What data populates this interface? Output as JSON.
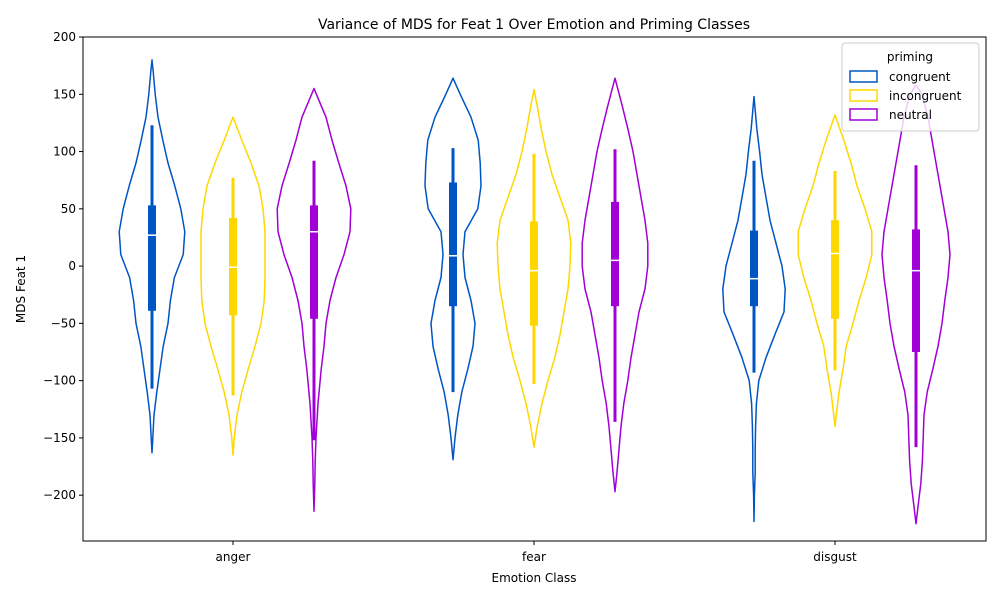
{
  "chart_data": {
    "type": "violin",
    "title": "Variance of MDS for Feat 1 Over Emotion and Priming Classes",
    "xlabel": "Emotion Class",
    "ylabel": "MDS Feat 1",
    "ylim": [
      -240,
      200
    ],
    "yticks": [
      200,
      150,
      100,
      50,
      0,
      -50,
      -100,
      -150,
      -200
    ],
    "ytick_labels": [
      "200",
      "150",
      "100",
      "50",
      "0",
      "−50",
      "−100",
      "−150",
      "−200"
    ],
    "categories": [
      "anger",
      "fear",
      "disgust"
    ],
    "legend": {
      "title": "priming",
      "position": "top-right",
      "entries": [
        "congruent",
        "incongruent",
        "neutral"
      ]
    },
    "series": [
      {
        "name": "congruent",
        "color": "#0055c4",
        "violins": [
          {
            "min": -163,
            "max": 180,
            "whisker_low": -107,
            "whisker_high": 123,
            "q1": -39,
            "median": 27,
            "q3": 53,
            "profile": [
              [
                -163,
                0.0
              ],
              [
                -150,
                0.02
              ],
              [
                -130,
                0.05
              ],
              [
                -110,
                0.12
              ],
              [
                -90,
                0.2
              ],
              [
                -70,
                0.28
              ],
              [
                -50,
                0.4
              ],
              [
                -30,
                0.46
              ],
              [
                -10,
                0.56
              ],
              [
                10,
                0.78
              ],
              [
                30,
                0.82
              ],
              [
                50,
                0.72
              ],
              [
                70,
                0.57
              ],
              [
                90,
                0.4
              ],
              [
                110,
                0.27
              ],
              [
                130,
                0.15
              ],
              [
                150,
                0.08
              ],
              [
                170,
                0.03
              ],
              [
                180,
                0.0
              ]
            ]
          },
          {
            "min": -169,
            "max": 164,
            "whisker_low": -110,
            "whisker_high": 103,
            "q1": -35,
            "median": 9,
            "q3": 73,
            "profile": [
              [
                -169,
                0.0
              ],
              [
                -150,
                0.05
              ],
              [
                -130,
                0.12
              ],
              [
                -110,
                0.22
              ],
              [
                -90,
                0.37
              ],
              [
                -70,
                0.5
              ],
              [
                -50,
                0.55
              ],
              [
                -30,
                0.45
              ],
              [
                -10,
                0.3
              ],
              [
                10,
                0.25
              ],
              [
                30,
                0.3
              ],
              [
                50,
                0.62
              ],
              [
                70,
                0.7
              ],
              [
                90,
                0.68
              ],
              [
                110,
                0.63
              ],
              [
                130,
                0.45
              ],
              [
                150,
                0.18
              ],
              [
                164,
                0.0
              ]
            ]
          },
          {
            "min": -223,
            "max": 148,
            "whisker_low": -93,
            "whisker_high": 92,
            "q1": -35,
            "median": -11,
            "q3": 31,
            "profile": [
              [
                -223,
                0.0
              ],
              [
                -200,
                0.01
              ],
              [
                -180,
                0.03
              ],
              [
                -160,
                0.03
              ],
              [
                -140,
                0.04
              ],
              [
                -120,
                0.06
              ],
              [
                -100,
                0.12
              ],
              [
                -80,
                0.3
              ],
              [
                -60,
                0.52
              ],
              [
                -40,
                0.75
              ],
              [
                -20,
                0.78
              ],
              [
                0,
                0.7
              ],
              [
                20,
                0.55
              ],
              [
                40,
                0.4
              ],
              [
                60,
                0.3
              ],
              [
                80,
                0.2
              ],
              [
                100,
                0.14
              ],
              [
                120,
                0.07
              ],
              [
                140,
                0.02
              ],
              [
                148,
                0.0
              ]
            ]
          }
        ]
      },
      {
        "name": "incongruent",
        "color": "#ffd700",
        "violins": [
          {
            "min": -165,
            "max": 130,
            "whisker_low": -113,
            "whisker_high": 77,
            "q1": -43,
            "median": -1,
            "q3": 42,
            "profile": [
              [
                -165,
                0.0
              ],
              [
                -150,
                0.03
              ],
              [
                -130,
                0.1
              ],
              [
                -110,
                0.22
              ],
              [
                -90,
                0.38
              ],
              [
                -70,
                0.55
              ],
              [
                -50,
                0.7
              ],
              [
                -30,
                0.78
              ],
              [
                -10,
                0.8
              ],
              [
                10,
                0.8
              ],
              [
                30,
                0.8
              ],
              [
                50,
                0.75
              ],
              [
                70,
                0.65
              ],
              [
                90,
                0.45
              ],
              [
                110,
                0.22
              ],
              [
                130,
                0.0
              ]
            ]
          },
          {
            "min": -158,
            "max": 154,
            "whisker_low": -103,
            "whisker_high": 98,
            "q1": -52,
            "median": -4,
            "q3": 39,
            "profile": [
              [
                -158,
                0.0
              ],
              [
                -140,
                0.08
              ],
              [
                -120,
                0.2
              ],
              [
                -100,
                0.35
              ],
              [
                -80,
                0.52
              ],
              [
                -60,
                0.65
              ],
              [
                -40,
                0.75
              ],
              [
                -20,
                0.85
              ],
              [
                0,
                0.9
              ],
              [
                20,
                0.92
              ],
              [
                40,
                0.85
              ],
              [
                60,
                0.65
              ],
              [
                80,
                0.45
              ],
              [
                100,
                0.3
              ],
              [
                120,
                0.18
              ],
              [
                140,
                0.08
              ],
              [
                154,
                0.0
              ]
            ]
          },
          {
            "min": -140,
            "max": 132,
            "whisker_low": -91,
            "whisker_high": 83,
            "q1": -46,
            "median": 11,
            "q3": 40,
            "profile": [
              [
                -140,
                0.0
              ],
              [
                -130,
                0.03
              ],
              [
                -110,
                0.1
              ],
              [
                -90,
                0.2
              ],
              [
                -70,
                0.28
              ],
              [
                -50,
                0.45
              ],
              [
                -30,
                0.6
              ],
              [
                -10,
                0.78
              ],
              [
                10,
                0.92
              ],
              [
                30,
                0.92
              ],
              [
                50,
                0.75
              ],
              [
                70,
                0.55
              ],
              [
                90,
                0.4
              ],
              [
                110,
                0.22
              ],
              [
                132,
                0.0
              ]
            ]
          }
        ]
      },
      {
        "name": "neutral",
        "color": "#a100d6",
        "violins": [
          {
            "min": -214,
            "max": 155,
            "whisker_low": -152,
            "whisker_high": 92,
            "q1": -46,
            "median": 30,
            "q3": 53,
            "profile": [
              [
                -214,
                0.0
              ],
              [
                -190,
                0.02
              ],
              [
                -170,
                0.03
              ],
              [
                -150,
                0.05
              ],
              [
                -120,
                0.1
              ],
              [
                -90,
                0.18
              ],
              [
                -70,
                0.25
              ],
              [
                -50,
                0.3
              ],
              [
                -30,
                0.4
              ],
              [
                -10,
                0.55
              ],
              [
                10,
                0.75
              ],
              [
                30,
                0.9
              ],
              [
                50,
                0.92
              ],
              [
                70,
                0.8
              ],
              [
                90,
                0.62
              ],
              [
                110,
                0.45
              ],
              [
                130,
                0.3
              ],
              [
                150,
                0.06
              ],
              [
                155,
                0.0
              ]
            ]
          },
          {
            "min": -197,
            "max": 164,
            "whisker_low": -136,
            "whisker_high": 102,
            "q1": -35,
            "median": 5,
            "q3": 56,
            "profile": [
              [
                -197,
                0.0
              ],
              [
                -180,
                0.05
              ],
              [
                -160,
                0.1
              ],
              [
                -140,
                0.15
              ],
              [
                -120,
                0.22
              ],
              [
                -100,
                0.32
              ],
              [
                -80,
                0.4
              ],
              [
                -60,
                0.5
              ],
              [
                -40,
                0.6
              ],
              [
                -20,
                0.75
              ],
              [
                0,
                0.82
              ],
              [
                20,
                0.82
              ],
              [
                40,
                0.75
              ],
              [
                60,
                0.65
              ],
              [
                80,
                0.55
              ],
              [
                100,
                0.45
              ],
              [
                120,
                0.32
              ],
              [
                140,
                0.18
              ],
              [
                164,
                0.0
              ]
            ]
          },
          {
            "min": -225,
            "max": 158,
            "whisker_low": -158,
            "whisker_high": 88,
            "q1": -75,
            "median": -4,
            "q3": 32,
            "profile": [
              [
                -225,
                0.0
              ],
              [
                -210,
                0.05
              ],
              [
                -190,
                0.12
              ],
              [
                -170,
                0.16
              ],
              [
                -150,
                0.18
              ],
              [
                -130,
                0.2
              ],
              [
                -110,
                0.28
              ],
              [
                -90,
                0.42
              ],
              [
                -70,
                0.55
              ],
              [
                -50,
                0.65
              ],
              [
                -30,
                0.72
              ],
              [
                -10,
                0.8
              ],
              [
                10,
                0.85
              ],
              [
                30,
                0.8
              ],
              [
                50,
                0.7
              ],
              [
                70,
                0.6
              ],
              [
                90,
                0.5
              ],
              [
                110,
                0.4
              ],
              [
                130,
                0.3
              ],
              [
                150,
                0.15
              ],
              [
                158,
                0.0
              ]
            ]
          }
        ]
      }
    ]
  }
}
